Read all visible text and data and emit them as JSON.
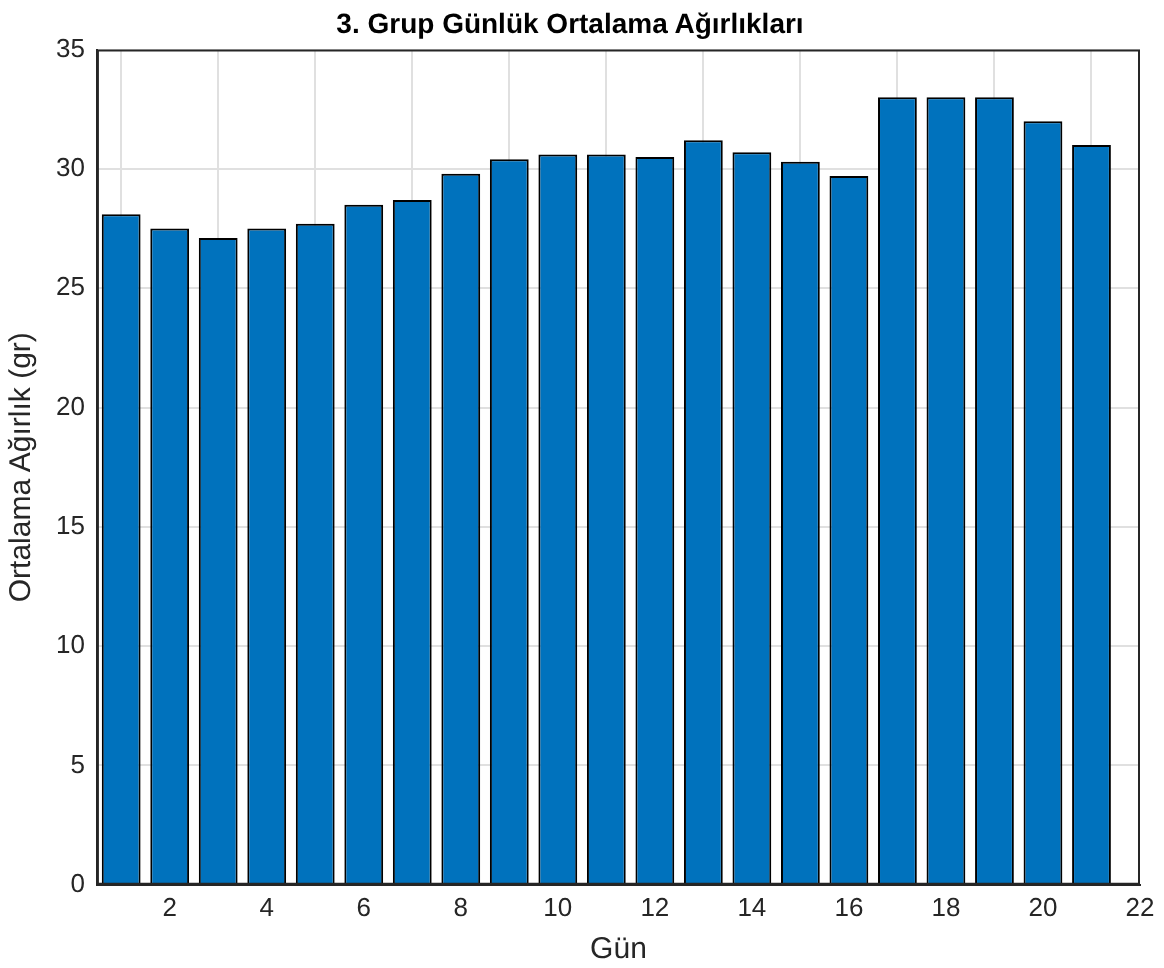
{
  "chart_data": {
    "type": "bar",
    "title": "3. Grup Günlük Ortalama Ağırlıkları",
    "xlabel": "Gün",
    "ylabel": "Ortalama Ağırlık (gr)",
    "x": [
      1,
      2,
      3,
      4,
      5,
      6,
      7,
      8,
      9,
      10,
      11,
      12,
      13,
      14,
      15,
      16,
      17,
      18,
      19,
      20,
      21
    ],
    "values": [
      28.1,
      27.5,
      27.1,
      27.5,
      27.7,
      28.5,
      28.7,
      29.8,
      30.4,
      30.6,
      30.6,
      30.5,
      31.2,
      30.7,
      30.3,
      29.7,
      33,
      33,
      33,
      32,
      31
    ],
    "color": "#0072bd",
    "xlim": [
      0.5,
      22
    ],
    "xticks": [
      2,
      4,
      6,
      8,
      10,
      12,
      14,
      16,
      18,
      20,
      22
    ],
    "ylim": [
      0,
      35
    ],
    "yticks": [
      0,
      5,
      10,
      15,
      20,
      25,
      30,
      35
    ],
    "grid": true,
    "legend": false
  }
}
